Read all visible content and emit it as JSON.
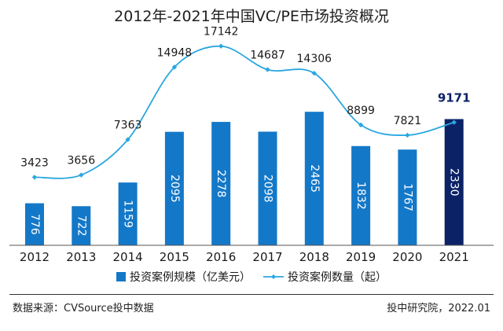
{
  "title": "2012年-2021年中国VC/PE市场投资概况",
  "footer": {
    "source": "数据来源：CVSource投中数据",
    "credit": "投中研究院，2022.01"
  },
  "colors": {
    "bar": "#1478c8",
    "bar_highlight": "#0b2266",
    "line": "#2aa7e0",
    "axis": "#555555"
  },
  "chart_data": {
    "type": "bar",
    "title": "2012年-2021年中国VC/PE市场投资概况",
    "categories": [
      "2012",
      "2013",
      "2014",
      "2015",
      "2016",
      "2017",
      "2018",
      "2019",
      "2020",
      "2021"
    ],
    "series": [
      {
        "name": "投资案例规模（亿美元）",
        "type": "bar",
        "values": [
          776,
          722,
          1159,
          2095,
          2278,
          2098,
          2465,
          1832,
          1767,
          2330
        ],
        "labels": [
          "776",
          "722",
          "1159",
          "2095",
          "2278",
          "2098",
          "2465",
          "1832",
          "1767",
          "2330"
        ]
      },
      {
        "name": "投资案例数量（起）",
        "type": "line",
        "values": [
          3423,
          3656,
          7363,
          14948,
          17142,
          14687,
          14306,
          8899,
          7821,
          9171
        ],
        "labels": [
          "3423",
          "3656",
          "7363",
          "14948",
          "17142",
          "14687",
          "14306",
          "8899",
          "7821",
          "9171"
        ]
      }
    ],
    "highlight_index": 9,
    "legend_position": "bottom",
    "grid": false
  }
}
